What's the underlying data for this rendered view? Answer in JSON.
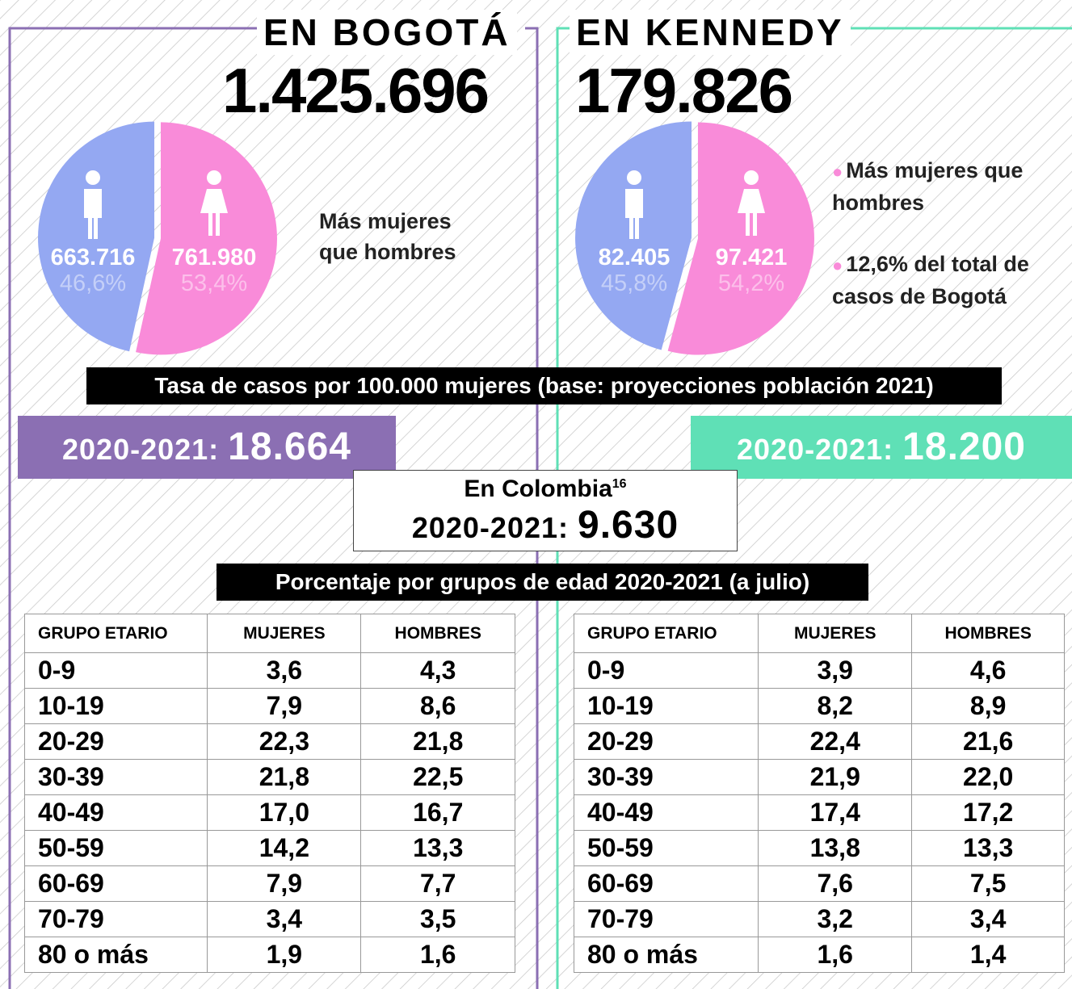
{
  "chart_data": [
    {
      "type": "pie",
      "values": [
        663716,
        761980
      ],
      "value_labels": [
        "663.716",
        "761.980"
      ],
      "percent_labels": [
        "46,6%",
        "53,4%"
      ],
      "colors": [
        "#94a8f2",
        "#f98bd9"
      ]
    },
    {
      "type": "pie",
      "values": [
        82405,
        97421
      ],
      "value_labels": [
        "82.405",
        "97.421"
      ],
      "percent_labels": [
        "45,8%",
        "54,2%"
      ],
      "colors": [
        "#94a8f2",
        "#f98bd9"
      ]
    }
  ],
  "panels": [
    {
      "title": "EN BOGOTÁ",
      "total": "1.425.696",
      "notes": [
        {
          "strong": "Más",
          "text": "mujeres que hombres"
        }
      ],
      "rate_label": "2020-2021:",
      "rate": "18.664",
      "table": {
        "header": [
          "GRUPO ETARIO",
          "MUJERES",
          "HOMBRES"
        ],
        "rows": [
          [
            "0-9",
            "3,6",
            "4,3"
          ],
          [
            "10-19",
            "7,9",
            "8,6"
          ],
          [
            "20-29",
            "22,3",
            "21,8"
          ],
          [
            "30-39",
            "21,8",
            "22,5"
          ],
          [
            "40-49",
            "17,0",
            "16,7"
          ],
          [
            "50-59",
            "14,2",
            "13,3"
          ],
          [
            "60-69",
            "7,9",
            "7,7"
          ],
          [
            "70-79",
            "3,4",
            "3,5"
          ],
          [
            "80 o más",
            "1,9",
            "1,6"
          ]
        ]
      }
    },
    {
      "title": "EN KENNEDY",
      "total": "179.826",
      "notes": [
        {
          "strong": "Más",
          "text": "mujeres que hombres"
        },
        {
          "strong": "12,6% del total de casos de Bogotá"
        }
      ],
      "rate_label": "2020-2021:",
      "rate": "18.200",
      "table": {
        "header": [
          "GRUPO ETARIO",
          "MUJERES",
          "HOMBRES"
        ],
        "rows": [
          [
            "0-9",
            "3,9",
            "4,6"
          ],
          [
            "10-19",
            "8,2",
            "8,9"
          ],
          [
            "20-29",
            "22,4",
            "21,6"
          ],
          [
            "30-39",
            "21,9",
            "22,0"
          ],
          [
            "40-49",
            "17,4",
            "17,2"
          ],
          [
            "50-59",
            "13,8",
            "13,3"
          ],
          [
            "60-69",
            "7,6",
            "7,5"
          ],
          [
            "70-79",
            "3,2",
            "3,4"
          ],
          [
            "80 o más",
            "1,6",
            "1,4"
          ]
        ]
      }
    }
  ],
  "banner_rate": "Tasa de casos por 100.000 mujeres (base: proyecciones población 2021)",
  "colombia": {
    "title": "En Colombia",
    "footnote": "16",
    "rate_label": "2020-2021:",
    "rate": "9.630"
  },
  "banner_age": "Porcentaje por grupos de edad 2020-2021 (a julio)"
}
